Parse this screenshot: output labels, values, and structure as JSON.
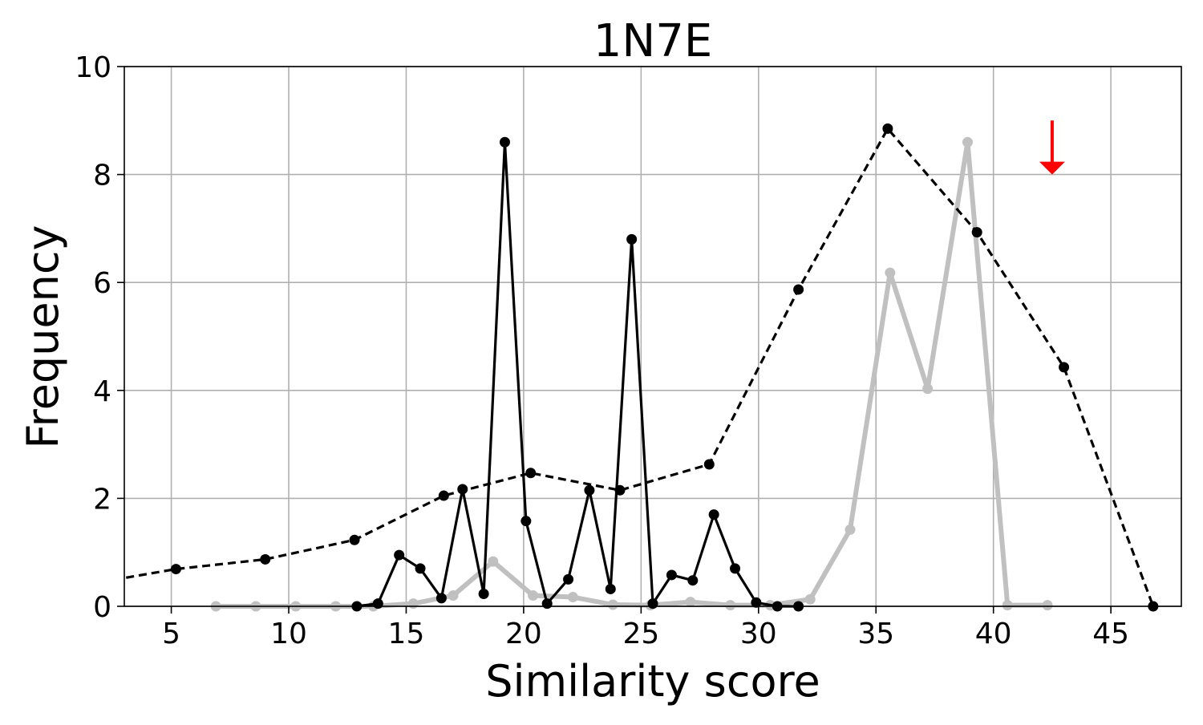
{
  "chart_data": {
    "type": "line",
    "title": "1N7E",
    "xlabel": "Similarity score",
    "ylabel": "Frequency",
    "xlim": [
      3,
      48
    ],
    "ylim": [
      0,
      10
    ],
    "xticks": [
      5,
      10,
      15,
      20,
      25,
      30,
      35,
      40,
      45
    ],
    "yticks": [
      0,
      2,
      4,
      6,
      8,
      10
    ],
    "grid": true,
    "annotation": {
      "type": "arrow",
      "color": "#ff0000",
      "x": 42.5,
      "y_from": 9.0,
      "y_to": 8.0
    },
    "series": [
      {
        "style": "black-solid",
        "color": "#000000",
        "points": [
          [
            12.9,
            0.0
          ],
          [
            13.8,
            0.05
          ],
          [
            14.7,
            0.95
          ],
          [
            15.6,
            0.7
          ],
          [
            16.5,
            0.15
          ],
          [
            17.4,
            2.17
          ],
          [
            18.3,
            0.23
          ],
          [
            19.2,
            8.6
          ],
          [
            20.1,
            1.58
          ],
          [
            21.0,
            0.05
          ],
          [
            21.9,
            0.5
          ],
          [
            22.8,
            2.15
          ],
          [
            23.7,
            0.32
          ],
          [
            24.6,
            6.8
          ],
          [
            25.5,
            0.05
          ],
          [
            26.3,
            0.58
          ],
          [
            27.2,
            0.48
          ],
          [
            28.1,
            1.7
          ],
          [
            29.0,
            0.7
          ],
          [
            29.9,
            0.07
          ],
          [
            30.8,
            0.0
          ],
          [
            31.7,
            0.0
          ]
        ]
      },
      {
        "style": "black-dashed",
        "color": "#000000",
        "points": [
          [
            2.0,
            0.45
          ],
          [
            5.2,
            0.69
          ],
          [
            9.0,
            0.87
          ],
          [
            12.8,
            1.23
          ],
          [
            16.6,
            2.05
          ],
          [
            20.3,
            2.47
          ],
          [
            24.1,
            2.15
          ],
          [
            27.9,
            2.63
          ],
          [
            31.7,
            5.87
          ],
          [
            35.5,
            8.85
          ],
          [
            39.3,
            6.93
          ],
          [
            43.0,
            4.43
          ],
          [
            46.8,
            0.0
          ]
        ]
      },
      {
        "style": "gray-thick",
        "color": "#c0c0c0",
        "points": [
          [
            6.9,
            0.0
          ],
          [
            8.6,
            0.0
          ],
          [
            10.3,
            0.0
          ],
          [
            12.0,
            0.0
          ],
          [
            13.6,
            0.0
          ],
          [
            15.3,
            0.05
          ],
          [
            17.0,
            0.2
          ],
          [
            18.7,
            0.83
          ],
          [
            20.4,
            0.2
          ],
          [
            22.1,
            0.17
          ],
          [
            23.8,
            0.03
          ],
          [
            25.4,
            0.02
          ],
          [
            27.1,
            0.08
          ],
          [
            28.8,
            0.02
          ],
          [
            30.5,
            0.02
          ],
          [
            32.2,
            0.13
          ],
          [
            33.9,
            1.42
          ],
          [
            35.6,
            6.18
          ],
          [
            37.2,
            4.03
          ],
          [
            38.9,
            8.6
          ],
          [
            40.6,
            0.02
          ],
          [
            42.3,
            0.02
          ]
        ]
      }
    ]
  }
}
